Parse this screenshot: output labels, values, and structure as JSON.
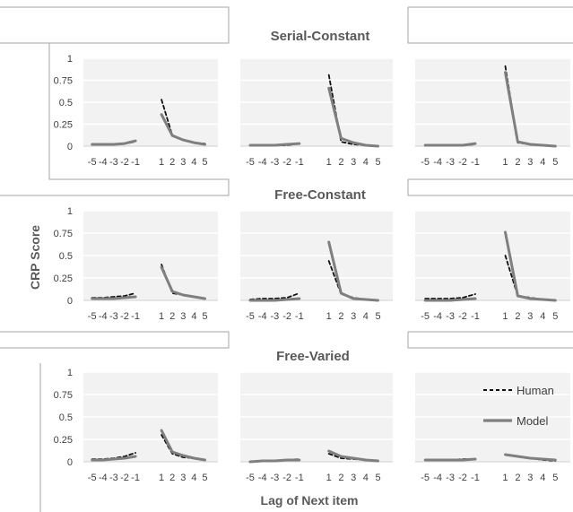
{
  "chart_data": {
    "type": "line",
    "row_titles": [
      "Serial-Constant",
      "Free-Constant",
      "Free-Varied"
    ],
    "ylabel": "CRP Score",
    "xlabel": "Lag of Next item",
    "x": [
      -5,
      -4,
      -3,
      -2,
      -1,
      1,
      2,
      3,
      4,
      5
    ],
    "x_tick_labels": [
      "-5",
      "-4",
      "-3",
      "-2",
      "-1",
      "1",
      "2",
      "3",
      "4",
      "5"
    ],
    "ylim": [
      0,
      1
    ],
    "y_ticks": [
      0,
      0.25,
      0.5,
      0.75,
      1
    ],
    "y_tick_labels": [
      "0",
      "0.25",
      "0.5",
      "0.75",
      "1"
    ],
    "legend": [
      {
        "name": "Human",
        "style": "dashed",
        "color": "#111111"
      },
      {
        "name": "Model",
        "style": "solid",
        "color": "#7f7f7f"
      }
    ],
    "panels": [
      {
        "row": 0,
        "col": 0,
        "show_y_ticks": true,
        "series": [
          {
            "name": "Human",
            "values": [
              0.02,
              0.02,
              0.02,
              0.03,
              0.05,
              0.53,
              0.12,
              0.07,
              0.04,
              0.03
            ]
          },
          {
            "name": "Model",
            "values": [
              0.02,
              0.02,
              0.02,
              0.03,
              0.06,
              0.36,
              0.12,
              0.07,
              0.04,
              0.02
            ]
          }
        ]
      },
      {
        "row": 0,
        "col": 1,
        "show_y_ticks": false,
        "series": [
          {
            "name": "Human",
            "values": [
              0.01,
              0.01,
              0.01,
              0.01,
              0.03,
              0.81,
              0.05,
              0.02,
              0.01,
              0.0
            ]
          },
          {
            "name": "Model",
            "values": [
              0.01,
              0.01,
              0.01,
              0.02,
              0.03,
              0.66,
              0.09,
              0.04,
              0.01,
              0.0
            ]
          }
        ]
      },
      {
        "row": 0,
        "col": 2,
        "show_y_ticks": false,
        "series": [
          {
            "name": "Human",
            "values": [
              0.01,
              0.01,
              0.01,
              0.01,
              0.02,
              0.91,
              0.04,
              0.02,
              0.01,
              0.0
            ]
          },
          {
            "name": "Model",
            "values": [
              0.01,
              0.01,
              0.01,
              0.01,
              0.03,
              0.84,
              0.05,
              0.02,
              0.01,
              0.0
            ]
          }
        ]
      },
      {
        "row": 1,
        "col": 0,
        "show_y_ticks": true,
        "series": [
          {
            "name": "Human",
            "values": [
              0.03,
              0.03,
              0.04,
              0.05,
              0.08,
              0.4,
              0.08,
              0.06,
              0.04,
              0.02
            ]
          },
          {
            "name": "Model",
            "values": [
              0.02,
              0.02,
              0.02,
              0.03,
              0.04,
              0.37,
              0.1,
              0.06,
              0.04,
              0.02
            ]
          }
        ]
      },
      {
        "row": 1,
        "col": 1,
        "show_y_ticks": false,
        "series": [
          {
            "name": "Human",
            "values": [
              0.01,
              0.02,
              0.02,
              0.03,
              0.08,
              0.44,
              0.07,
              0.03,
              0.01,
              0.0
            ]
          },
          {
            "name": "Model",
            "values": [
              0.0,
              0.0,
              0.0,
              0.01,
              0.02,
              0.65,
              0.08,
              0.02,
              0.01,
              0.0
            ]
          }
        ]
      },
      {
        "row": 1,
        "col": 2,
        "show_y_ticks": false,
        "series": [
          {
            "name": "Human",
            "values": [
              0.02,
              0.02,
              0.02,
              0.03,
              0.07,
              0.5,
              0.05,
              0.03,
              0.01,
              0.0
            ]
          },
          {
            "name": "Model",
            "values": [
              0.0,
              0.0,
              0.0,
              0.01,
              0.02,
              0.76,
              0.05,
              0.02,
              0.01,
              0.0
            ]
          }
        ]
      },
      {
        "row": 2,
        "col": 0,
        "show_y_ticks": true,
        "series": [
          {
            "name": "Human",
            "values": [
              0.03,
              0.03,
              0.04,
              0.06,
              0.1,
              0.3,
              0.09,
              0.05,
              0.04,
              0.02
            ]
          },
          {
            "name": "Model",
            "values": [
              0.02,
              0.02,
              0.03,
              0.04,
              0.06,
              0.35,
              0.11,
              0.07,
              0.04,
              0.02
            ]
          }
        ]
      },
      {
        "row": 2,
        "col": 1,
        "show_y_ticks": false,
        "series": [
          {
            "name": "Human",
            "values": [
              0.0,
              0.01,
              0.01,
              0.02,
              0.03,
              0.09,
              0.04,
              0.03,
              0.02,
              0.01
            ]
          },
          {
            "name": "Model",
            "values": [
              0.0,
              0.01,
              0.01,
              0.02,
              0.02,
              0.12,
              0.06,
              0.04,
              0.02,
              0.01
            ]
          }
        ]
      },
      {
        "row": 2,
        "col": 2,
        "show_y_ticks": false,
        "show_legend": true,
        "series": [
          {
            "name": "Human",
            "values": [
              0.02,
              0.02,
              0.02,
              0.03,
              0.03,
              0.08,
              0.06,
              0.04,
              0.02,
              0.01
            ]
          },
          {
            "name": "Model",
            "values": [
              0.02,
              0.02,
              0.02,
              0.02,
              0.03,
              0.08,
              0.06,
              0.04,
              0.03,
              0.02
            ]
          }
        ]
      }
    ]
  }
}
